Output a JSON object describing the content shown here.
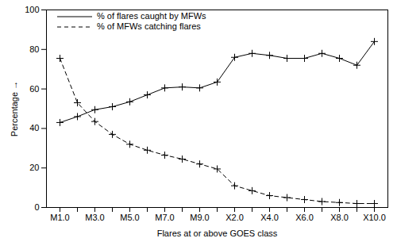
{
  "chart_data": {
    "type": "line",
    "xlabel": "Flares at or above GOES class",
    "ylabel": "Percentage",
    "categories": [
      "M1.0",
      null,
      "M3.0",
      null,
      "M5.0",
      null,
      "M7.0",
      null,
      "M9.0",
      null,
      "X2.0",
      null,
      "X4.0",
      null,
      "X6.0",
      null,
      "X8.0",
      null,
      "X10.0"
    ],
    "series": [
      {
        "name": "% of flares caught by MFWs",
        "color": "#000000",
        "line_style": "solid",
        "marker": "plus",
        "values": [
          43,
          46,
          49.5,
          51,
          53.5,
          57,
          60.5,
          61,
          60.5,
          63.5,
          76,
          78,
          77,
          75.5,
          75.5,
          78,
          75.5,
          72,
          84
        ]
      },
      {
        "name": "% of MFWs catching flares",
        "color": "#000000",
        "line_style": "dashed",
        "marker": "plus",
        "values": [
          75.5,
          53,
          43.5,
          37,
          32,
          29,
          26.5,
          24.5,
          22,
          19.5,
          11,
          8.5,
          6,
          5,
          4,
          3,
          2.5,
          2,
          2
        ]
      }
    ],
    "ylim": [
      0,
      100
    ],
    "yticks": [
      0,
      20,
      40,
      60,
      80,
      100
    ],
    "legend": "top-left",
    "grid": false
  }
}
